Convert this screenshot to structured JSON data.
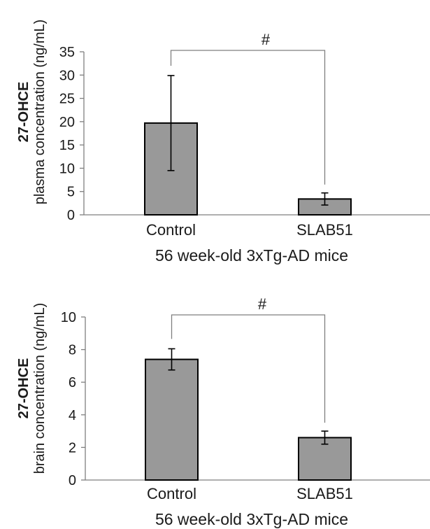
{
  "chart_data": [
    {
      "type": "bar",
      "categories": [
        "Control",
        "SLAB51"
      ],
      "values": [
        19.7,
        3.4
      ],
      "errors": [
        10.2,
        1.3
      ],
      "ylabel_bold": "27-OHCE",
      "ylabel": "plasma concentration (ng/mL)",
      "xlabel": "56 week-old 3xTg-AD mice",
      "ylim": [
        0,
        35
      ],
      "yticks": [
        "0",
        "5",
        "10",
        "15",
        "20",
        "25",
        "30",
        "35"
      ],
      "significance": "#",
      "bar_color": "#999999",
      "grid": false
    },
    {
      "type": "bar",
      "categories": [
        "Control",
        "SLAB51"
      ],
      "values": [
        7.4,
        2.6
      ],
      "errors": [
        0.65,
        0.4
      ],
      "ylabel_bold": "27-OHCE",
      "ylabel": "brain concentration (ng/mL)",
      "xlabel": "56 week-old 3xTg-AD mice",
      "ylim": [
        0,
        10
      ],
      "yticks": [
        "0",
        "2",
        "4",
        "6",
        "8",
        "10"
      ],
      "significance": "#",
      "bar_color": "#999999",
      "grid": false
    }
  ]
}
